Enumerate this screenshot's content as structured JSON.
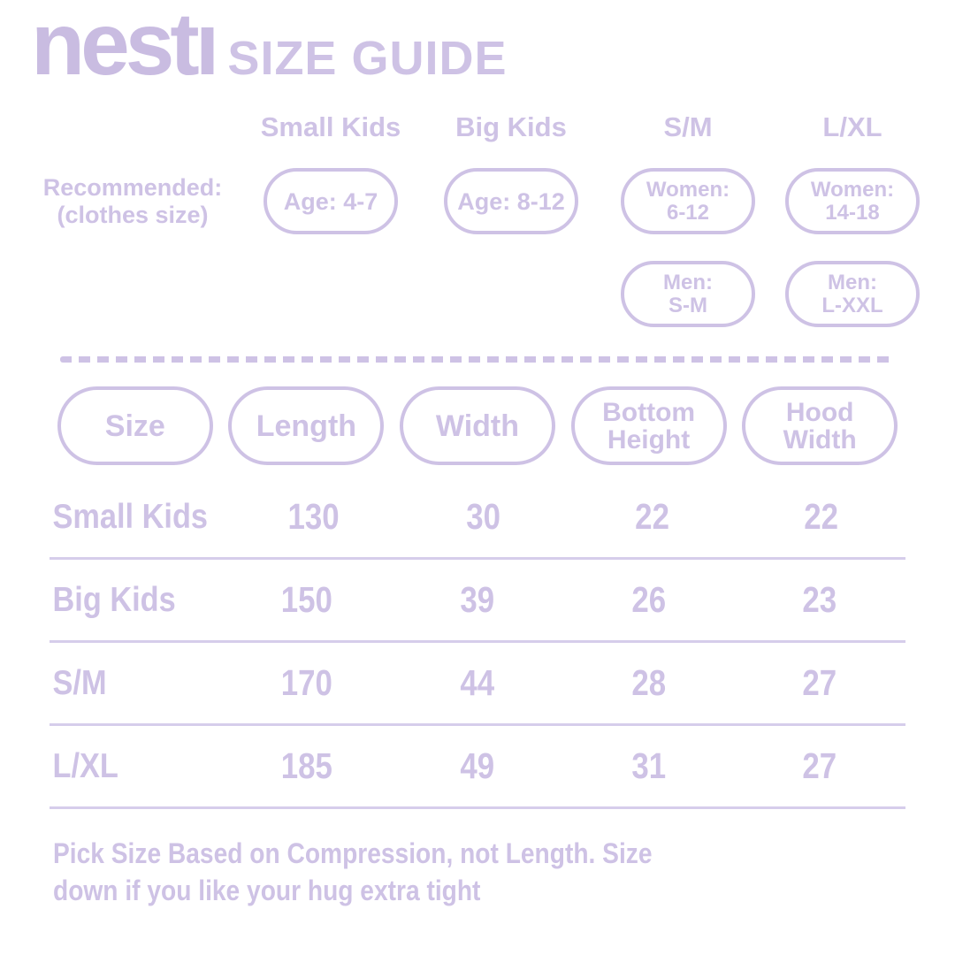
{
  "colors": {
    "lavender": "#cec2e5",
    "lavender-deep": "#c9bce1",
    "separator": "#d6cdeb",
    "bg": "#ffffff"
  },
  "brand": {
    "logo_text": "nest",
    "logo_i_stem": "ı",
    "title": "SIZE GUIDE"
  },
  "recommended": {
    "label_line1": "Recommended:",
    "label_line2": "(clothes size)",
    "column_headers": [
      "Small Kids",
      "Big Kids",
      "S/M",
      "L/XL"
    ],
    "pills": {
      "small_kids_age": "Age: 4-7",
      "big_kids_age": "Age: 8-12",
      "sm_women_line1": "Women:",
      "sm_women_line2": "6-12",
      "lxl_women_line1": "Women:",
      "lxl_women_line2": "14-18",
      "sm_men_line1": "Men:",
      "sm_men_line2": "S-M",
      "lxl_men_line1": "Men:",
      "lxl_men_line2": "L-XXL"
    }
  },
  "size_table": {
    "header_size": "Size",
    "header_length": "Length",
    "header_width": "Width",
    "header_bottom_line1": "Bottom",
    "header_bottom_line2": "Height",
    "header_hood_line1": "Hood",
    "header_hood_line2": "Width",
    "rows": [
      {
        "label": "Small Kids",
        "length": "130",
        "width": "30",
        "bottom_height": "22",
        "hood_width": "22"
      },
      {
        "label": "Big Kids",
        "length": "150",
        "width": "39",
        "bottom_height": "26",
        "hood_width": "23"
      },
      {
        "label": "S/M",
        "length": "170",
        "width": "44",
        "bottom_height": "28",
        "hood_width": "27"
      },
      {
        "label": "L/XL",
        "length": "185",
        "width": "49",
        "bottom_height": "31",
        "hood_width": "27"
      }
    ]
  },
  "footer": {
    "line1": "Pick Size Based on Compression, not Length. Size",
    "line2": "down if you like your hug extra tight"
  }
}
